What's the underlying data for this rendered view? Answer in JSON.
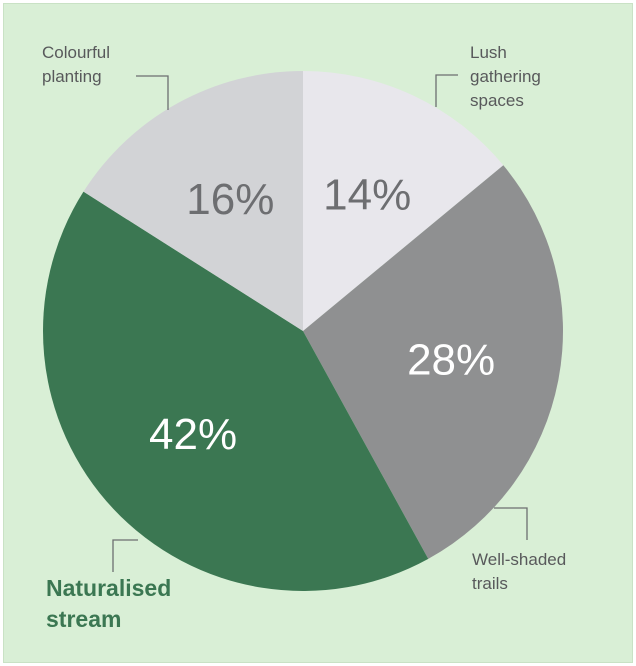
{
  "chart_data": {
    "type": "pie",
    "slices": [
      {
        "label": "Lush gathering spaces",
        "label_lines": [
          "Lush",
          "gathering",
          "spaces"
        ],
        "value": 14,
        "value_label": "14%",
        "color": "#e8e7ec",
        "text_color": "#6d6e71"
      },
      {
        "label": "Well-shaded trails",
        "label_lines": [
          "Well-shaded",
          "trails"
        ],
        "value": 28,
        "value_label": "28%",
        "color": "#8f9091",
        "text_color": "#ffffff"
      },
      {
        "label": "Naturalised stream",
        "label_lines": [
          "Naturalised",
          "stream"
        ],
        "value": 42,
        "value_label": "42%",
        "color": "#3b7752",
        "text_color": "#ffffff",
        "label_color": "#3b7752",
        "emphasis": true
      },
      {
        "label": "Colourful planting",
        "label_lines": [
          "Colourful",
          "planting"
        ],
        "value": 16,
        "value_label": "16%",
        "color": "#d2d3d6",
        "text_color": "#6d6e71"
      }
    ],
    "start": "12 o'clock",
    "direction": "clockwise",
    "background_color": "#d9efd6",
    "legend": "none"
  }
}
